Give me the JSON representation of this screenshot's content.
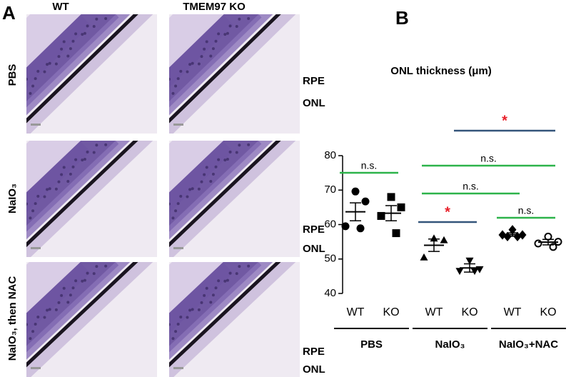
{
  "panel_a": {
    "label": "A",
    "columns": [
      "WT",
      "TMEM97 KO"
    ],
    "rows": [
      {
        "label": "PBS",
        "annotations": [
          "RPE",
          "ONL"
        ]
      },
      {
        "label": "NaIO₃",
        "annotations": [
          "RPE",
          "ONL"
        ]
      },
      {
        "label": "NaIO₃, then NAC",
        "annotations": [
          "RPE",
          "ONL"
        ]
      }
    ]
  },
  "chart_data": {
    "type": "dot",
    "panel_label": "B",
    "title": "ONL thickness (μm)",
    "categories": [
      "WT",
      "KO",
      "WT",
      "KO",
      "WT",
      "KO"
    ],
    "group_labels": [
      "PBS",
      "NaIO₃",
      "NaIO₃+NAC"
    ],
    "ylim": [
      40,
      80
    ],
    "yticks": [
      40,
      50,
      60,
      70,
      80
    ],
    "color": "#000000",
    "groups": [
      {
        "marker": "circle",
        "values": [
          69.6,
          66.7,
          59.5,
          58.9
        ],
        "mean": 63.7,
        "error": 2.6
      },
      {
        "marker": "square",
        "values": [
          68,
          65,
          62.5,
          57.5
        ],
        "mean": 63.3,
        "error": 2.2
      },
      {
        "marker": "triangle",
        "values": [
          56,
          55.5,
          50.5
        ],
        "mean": 54,
        "error": 1.8
      },
      {
        "marker": "triangle-down",
        "values": [
          49.5,
          47,
          46.5,
          46.5
        ],
        "mean": 47.4,
        "error": 1.2
      },
      {
        "marker": "diamond",
        "values": [
          58.5,
          57,
          57,
          56.5,
          56.5
        ],
        "mean": 57.1,
        "error": 0.5
      },
      {
        "marker": "open-circle",
        "values": [
          56.5,
          55,
          54.5,
          53.5
        ],
        "mean": 54.9,
        "error": 0.8
      }
    ],
    "comparisons": [
      {
        "from": 0,
        "to": 1,
        "label": "n.s.",
        "color": "#2db34a",
        "label_color": "#000000"
      },
      {
        "from": 2,
        "to": 3,
        "label": "*",
        "color": "#34557a",
        "label_color": "#e8202a"
      },
      {
        "from": 4,
        "to": 5,
        "label": "n.s.",
        "color": "#2db34a",
        "label_color": "#000000"
      },
      {
        "from": 2,
        "to": 4,
        "label": "n.s.",
        "color": "#2db34a",
        "label_color": "#000000"
      },
      {
        "from": 2,
        "to": 5,
        "label": "n.s.",
        "color": "#2db34a",
        "label_color": "#000000"
      },
      {
        "from": 3,
        "to": 5,
        "label": "*",
        "color": "#34557a",
        "label_color": "#e8202a"
      }
    ]
  }
}
